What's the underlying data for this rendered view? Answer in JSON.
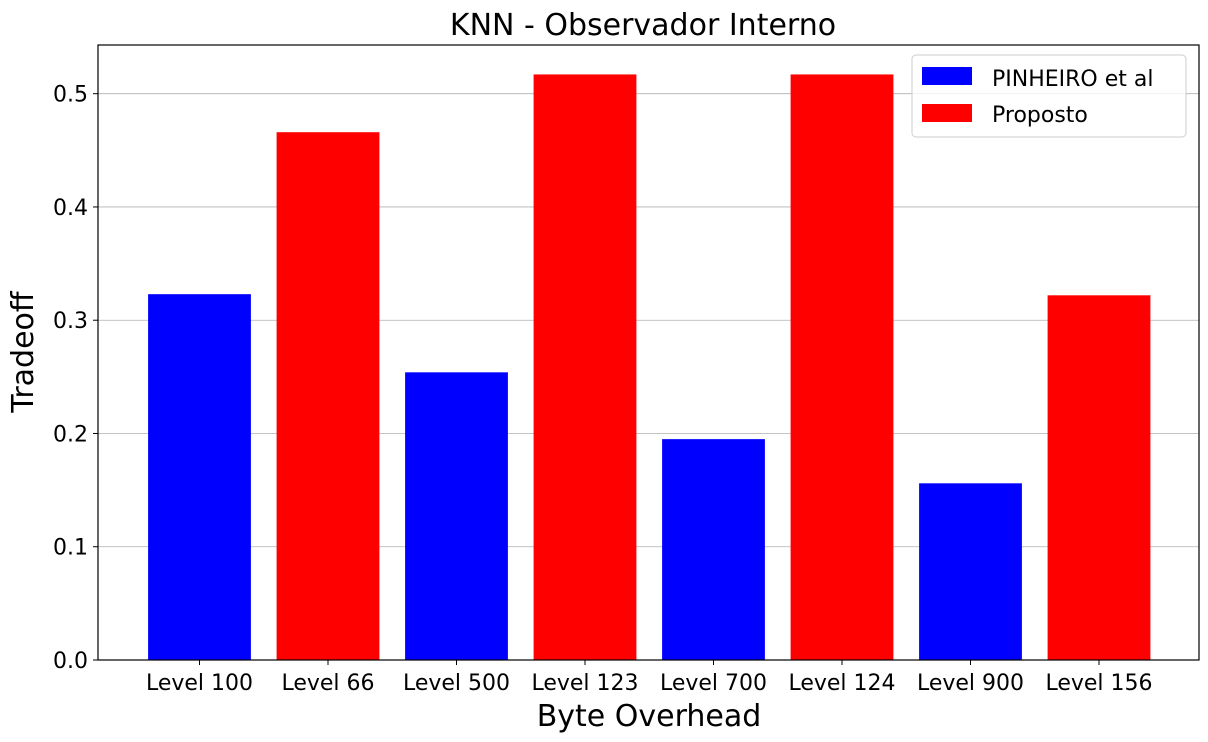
{
  "chart_data": {
    "type": "bar",
    "title": "KNN - Observador Interno",
    "xlabel": "Byte Overhead",
    "ylabel": "Tradeoff",
    "categories": [
      "Level 100",
      "Level 66",
      "Level 500",
      "Level 123",
      "Level 700",
      "Level 124",
      "Level 900",
      "Level 156"
    ],
    "values": [
      0.323,
      0.466,
      0.254,
      0.517,
      0.195,
      0.517,
      0.156,
      0.322
    ],
    "bar_series": [
      0,
      1,
      0,
      1,
      0,
      1,
      0,
      1
    ],
    "series": [
      {
        "name": "PINHEIRO et al",
        "color": "#0000ff"
      },
      {
        "name": "Proposto",
        "color": "#ff0000"
      }
    ],
    "ylim": [
      0,
      0.543
    ],
    "yticks": [
      "0.0",
      "0.1",
      "0.2",
      "0.3",
      "0.4",
      "0.5"
    ],
    "ytick_values": [
      0,
      0.1,
      0.2,
      0.3,
      0.4,
      0.5
    ],
    "grid": "y",
    "legend_position": "top-right"
  }
}
